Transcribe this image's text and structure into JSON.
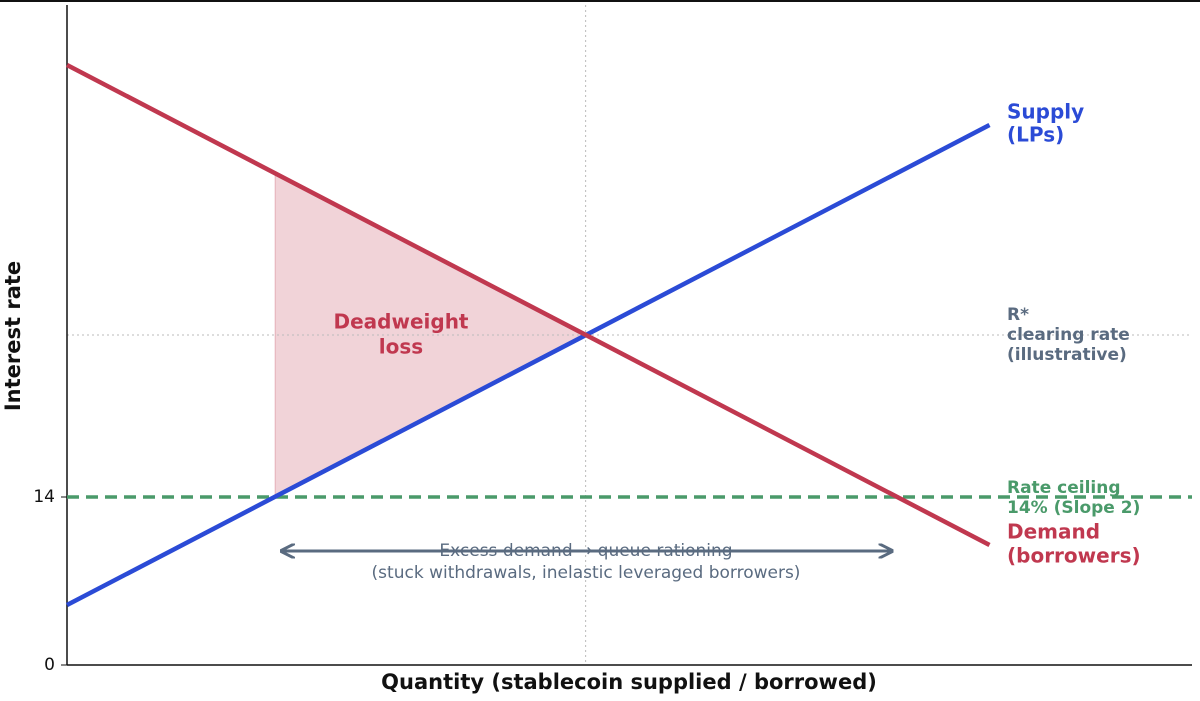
{
  "chart_data": {
    "type": "line",
    "xlabel": "Quantity (stablecoin supplied / borrowed)",
    "ylabel": "Interest rate",
    "xlim": [
      0,
      100
    ],
    "ylim": [
      0,
      55
    ],
    "yticks": [
      0,
      14
    ],
    "series": [
      {
        "name_lines": [
          "Supply",
          "(LPs)"
        ],
        "color": "#2b4bd6",
        "x": [
          0,
          82
        ],
        "values": [
          5,
          45
        ]
      },
      {
        "name_lines": [
          "Demand",
          "(borrowers)"
        ],
        "color": "#c0384f",
        "x": [
          0,
          82
        ],
        "values": [
          50,
          10
        ]
      }
    ],
    "clearing": {
      "x": 46.1,
      "value": 27.5,
      "label_lines": [
        "R*",
        "clearing rate",
        "(illustrative)"
      ],
      "color": "#5a6b80"
    },
    "ceiling": {
      "value": 14,
      "label_lines": [
        "Rate ceiling",
        "14%  (Slope 2)"
      ],
      "color": "#4a9a6a"
    },
    "deadweight": {
      "x": [
        18.5,
        18.5,
        46.1
      ],
      "y": [
        14,
        41,
        27.5
      ],
      "label_lines": [
        "Deadweight",
        "loss"
      ],
      "color": "#c0384f"
    },
    "excess": {
      "x": [
        19.2,
        73.2
      ],
      "y": 9.5,
      "label_lines": [
        "Excess demand  →  queue rationing",
        "(stuck withdrawals, inelastic leveraged borrowers)"
      ],
      "color": "#5a6b80"
    }
  }
}
